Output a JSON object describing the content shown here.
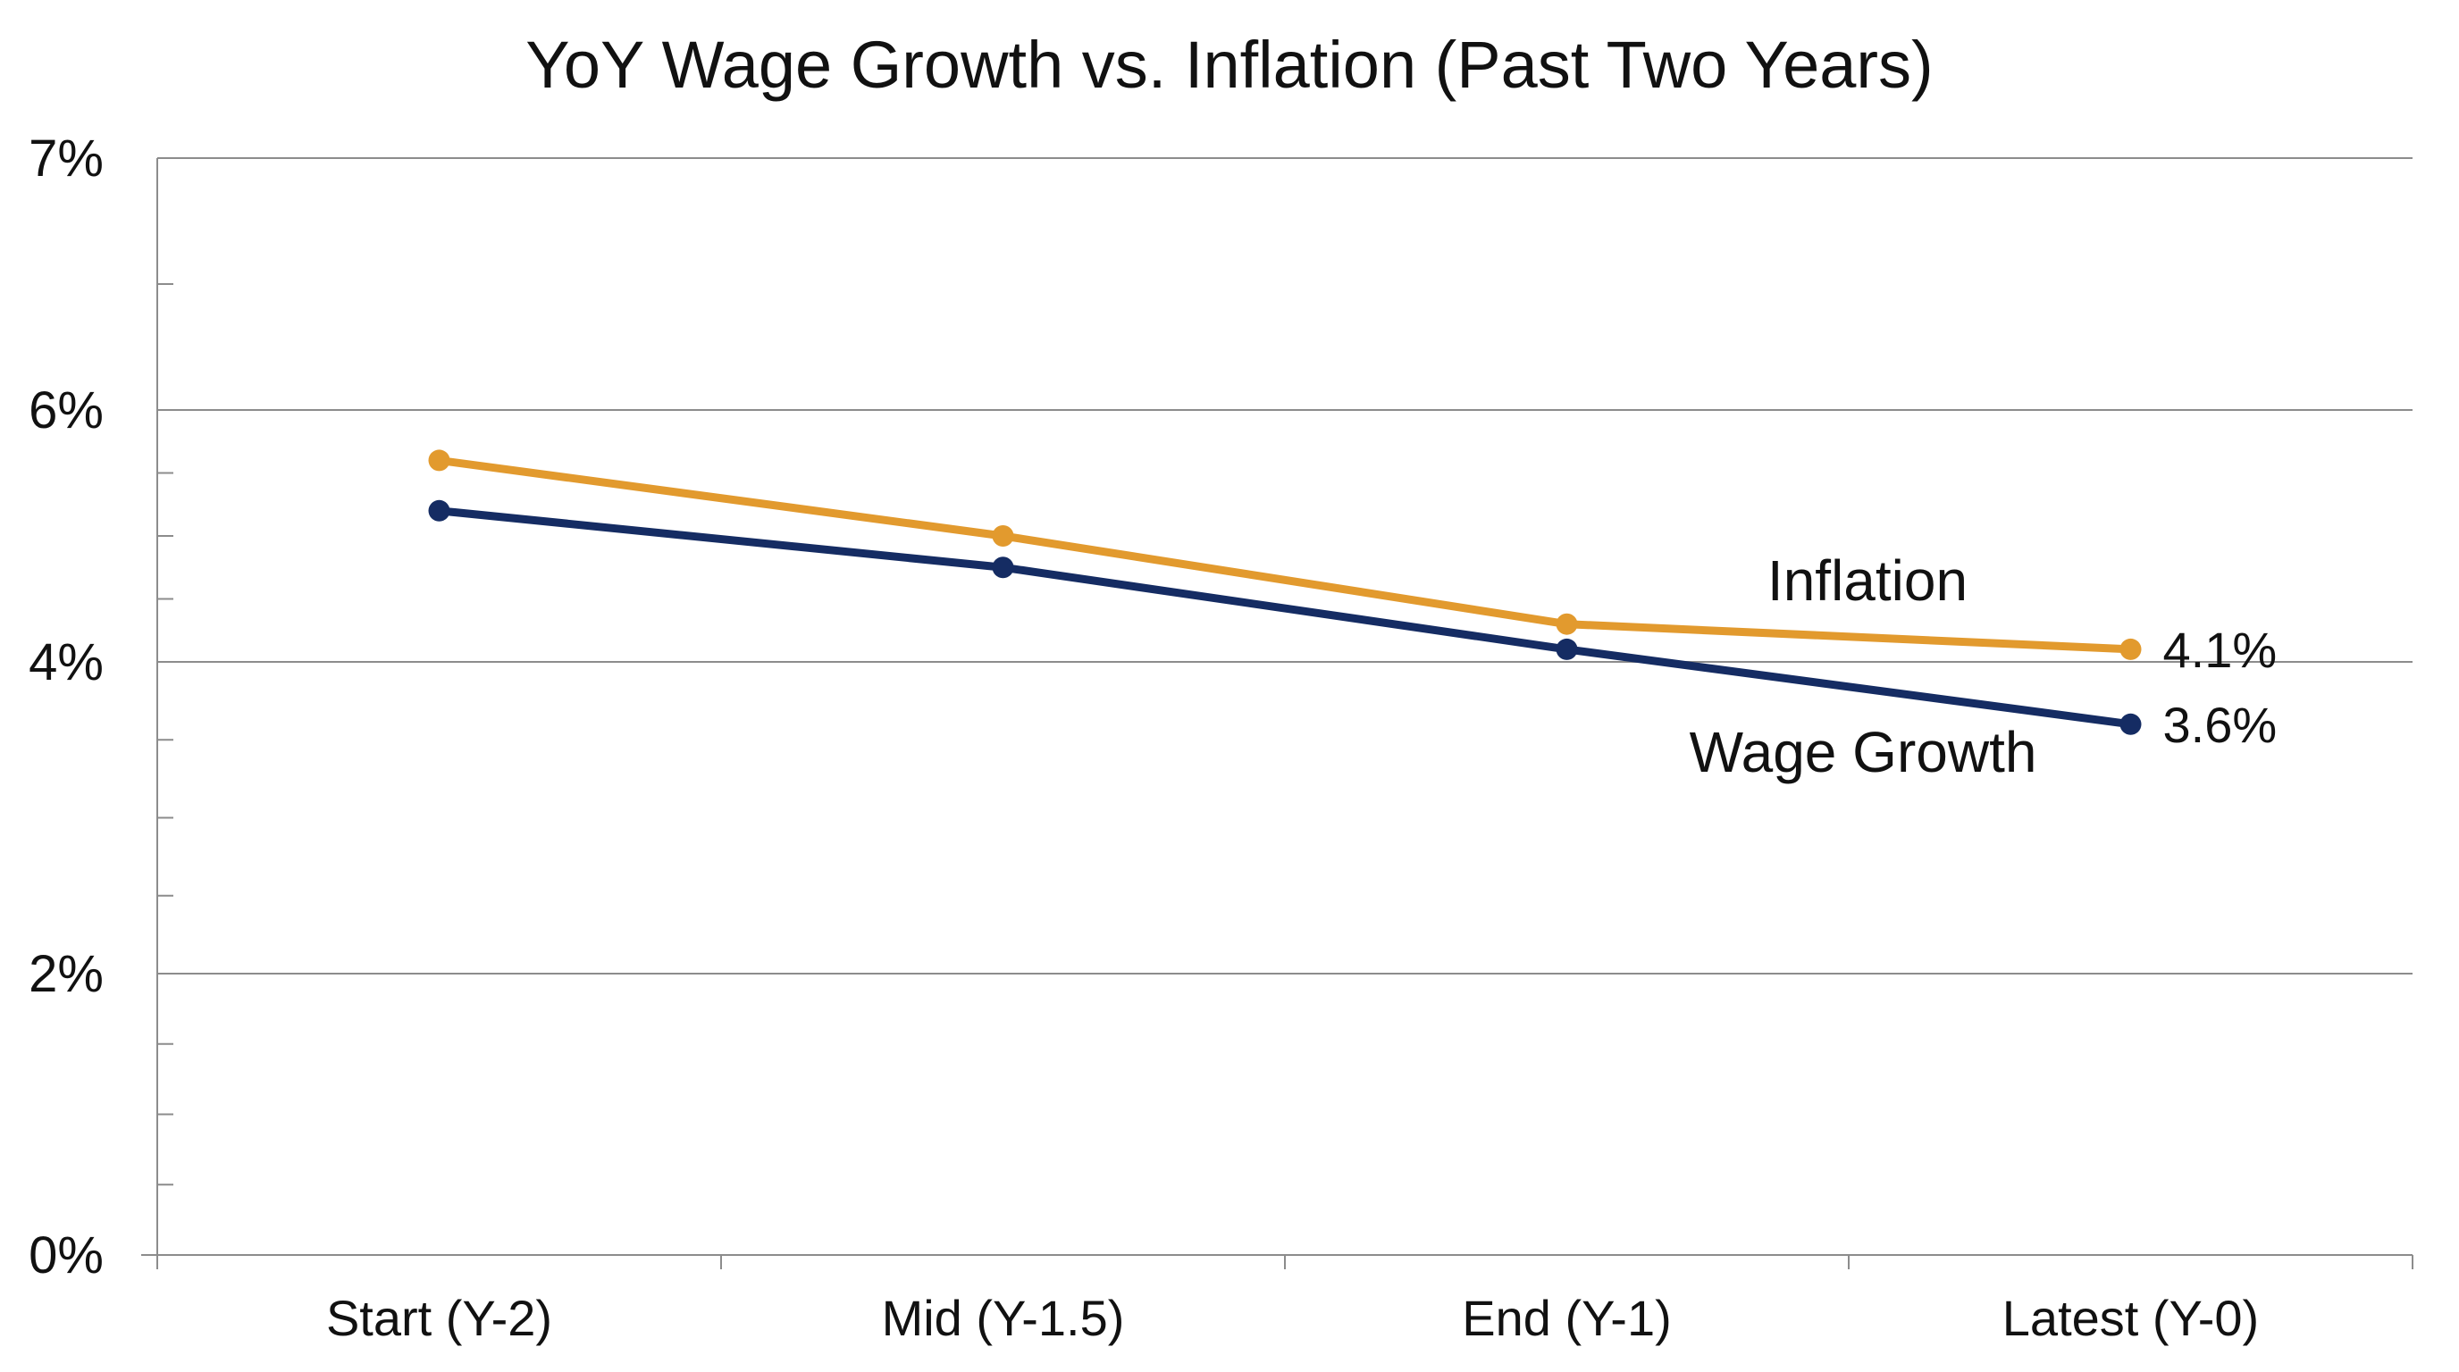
{
  "chart_data": {
    "type": "line",
    "title": "YoY Wage Growth vs. Inflation (Past Two Years)",
    "xlabel": "",
    "ylabel": "",
    "categories": [
      "Start (Y-2)",
      "Mid (Y-1.5)",
      "End (Y-1)",
      "Latest (Y-0)"
    ],
    "y_ticks": [
      {
        "value": 0,
        "label": "0%"
      },
      {
        "value": 2,
        "label": "2%"
      },
      {
        "value": 4,
        "label": "4%"
      },
      {
        "value": 6,
        "label": "6%"
      },
      {
        "value": 7,
        "label": "7%"
      }
    ],
    "ylim": [
      0,
      7
    ],
    "grid": true,
    "series": [
      {
        "name": "Inflation",
        "color": "#E29A2E",
        "values": [
          5.6,
          5.0,
          4.3,
          4.1
        ],
        "end_label": "4.1%"
      },
      {
        "name": "Wage Growth",
        "color": "#152C63",
        "values": [
          5.2,
          4.75,
          4.1,
          3.6
        ],
        "end_label": "3.6%"
      }
    ]
  }
}
